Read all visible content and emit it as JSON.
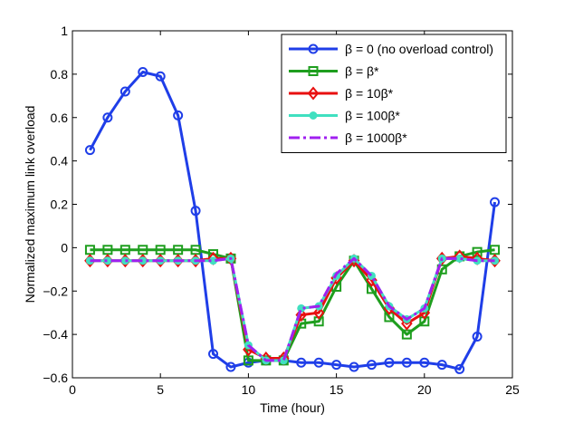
{
  "chart_data": {
    "type": "line",
    "title": "",
    "xlabel": "Time (hour)",
    "ylabel": "Normalized maximum link overload",
    "xlim": [
      0,
      25
    ],
    "ylim": [
      -0.6,
      1
    ],
    "xticks": [
      0,
      5,
      10,
      15,
      20,
      25
    ],
    "xtick_labels": [
      "0",
      "5",
      "10",
      "15",
      "20",
      "25"
    ],
    "yticks": [
      -0.6,
      -0.4,
      -0.2,
      0,
      0.2,
      0.4,
      0.6,
      0.8,
      1
    ],
    "ytick_labels": [
      "−0.6",
      "−0.4",
      "−0.2",
      "0",
      "0.2",
      "0.4",
      "0.6",
      "0.8",
      "1"
    ],
    "grid": false,
    "legend_position": "top-right",
    "x": [
      1,
      2,
      3,
      4,
      5,
      6,
      7,
      8,
      9,
      10,
      11,
      12,
      13,
      14,
      15,
      16,
      17,
      18,
      19,
      20,
      21,
      22,
      23,
      24
    ],
    "series": [
      {
        "name": "β = 0 (no overload control)",
        "color": "#1f3ee8",
        "marker": "circle",
        "linestyle": "solid",
        "values": [
          0.45,
          0.6,
          0.72,
          0.81,
          0.79,
          0.61,
          0.17,
          -0.49,
          -0.55,
          -0.53,
          -0.52,
          -0.52,
          -0.53,
          -0.53,
          -0.54,
          -0.55,
          -0.54,
          -0.53,
          -0.53,
          -0.53,
          -0.54,
          -0.56,
          -0.41,
          0.21
        ]
      },
      {
        "name": "β = β*",
        "color": "#1e9e1e",
        "marker": "square",
        "linestyle": "solid",
        "values": [
          -0.01,
          -0.01,
          -0.01,
          -0.01,
          -0.01,
          -0.01,
          -0.01,
          -0.03,
          -0.05,
          -0.52,
          -0.52,
          -0.52,
          -0.35,
          -0.34,
          -0.18,
          -0.06,
          -0.19,
          -0.32,
          -0.4,
          -0.34,
          -0.1,
          -0.04,
          -0.02,
          -0.01
        ]
      },
      {
        "name": "β = 10β*",
        "color": "#e81010",
        "marker": "diamond",
        "linestyle": "solid",
        "values": [
          -0.06,
          -0.06,
          -0.06,
          -0.06,
          -0.06,
          -0.06,
          -0.06,
          -0.05,
          -0.05,
          -0.47,
          -0.51,
          -0.51,
          -0.31,
          -0.3,
          -0.14,
          -0.06,
          -0.15,
          -0.28,
          -0.35,
          -0.3,
          -0.05,
          -0.04,
          -0.05,
          -0.06
        ]
      },
      {
        "name": "β = 100β*",
        "color": "#40e0c0",
        "marker": "circle-filled",
        "linestyle": "solid",
        "values": [
          -0.06,
          -0.06,
          -0.06,
          -0.06,
          -0.06,
          -0.06,
          -0.06,
          -0.06,
          -0.05,
          -0.45,
          -0.52,
          -0.52,
          -0.28,
          -0.27,
          -0.13,
          -0.05,
          -0.13,
          -0.27,
          -0.33,
          -0.28,
          -0.05,
          -0.05,
          -0.06,
          -0.06
        ]
      },
      {
        "name": "β = 1000β*",
        "color": "#a020f0",
        "marker": "none",
        "linestyle": "dashdot",
        "values": [
          -0.06,
          -0.06,
          -0.06,
          -0.06,
          -0.06,
          -0.06,
          -0.06,
          -0.06,
          -0.05,
          -0.45,
          -0.52,
          -0.52,
          -0.28,
          -0.27,
          -0.12,
          -0.05,
          -0.13,
          -0.27,
          -0.33,
          -0.28,
          -0.05,
          -0.05,
          -0.06,
          -0.06
        ]
      }
    ]
  }
}
